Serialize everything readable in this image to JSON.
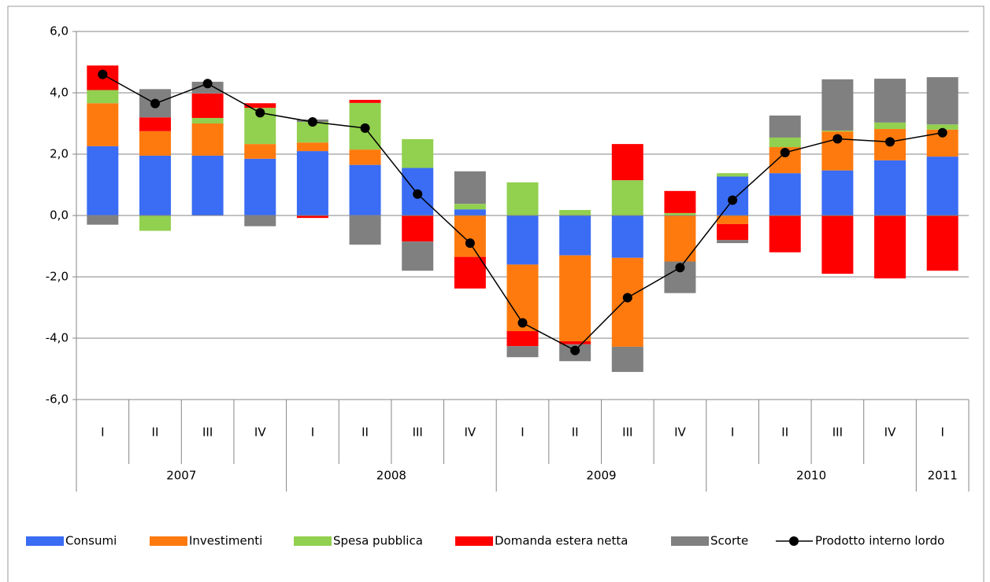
{
  "chart_data": {
    "type": "stacked-bar-line",
    "groups": [
      {
        "label": "2007",
        "categories": [
          "I",
          "II",
          "III",
          "IV"
        ]
      },
      {
        "label": "2008",
        "categories": [
          "I",
          "II",
          "III",
          "IV"
        ]
      },
      {
        "label": "2009",
        "categories": [
          "I",
          "II",
          "III",
          "IV"
        ]
      },
      {
        "label": "2010",
        "categories": [
          "I",
          "II",
          "III",
          "IV"
        ]
      },
      {
        "label": "2011",
        "categories": [
          "I"
        ]
      }
    ],
    "series": [
      {
        "name": "Consumi",
        "color": "#3a6cf4",
        "values": [
          2.26,
          1.95,
          1.95,
          1.85,
          2.1,
          1.65,
          1.55,
          0.2,
          -1.6,
          -1.3,
          -1.38,
          0,
          1.27,
          1.38,
          1.47,
          1.8,
          1.92
        ]
      },
      {
        "name": "Investimenti",
        "color": "#ff7a0e",
        "values": [
          1.4,
          0.8,
          1.05,
          0.48,
          0.28,
          0.5,
          0,
          -1.35,
          -2.17,
          -2.8,
          -2.9,
          -1.5,
          -0.28,
          0.85,
          1.27,
          1.02,
          0.88
        ]
      },
      {
        "name": "Spesa pubblica",
        "color": "#92d050",
        "values": [
          0.43,
          -0.5,
          0.18,
          1.18,
          0.67,
          1.52,
          0.94,
          0.18,
          1.08,
          0.18,
          1.15,
          0.08,
          0.11,
          0.31,
          0.03,
          0.21,
          0.17
        ]
      },
      {
        "name": "Domanda estera netta",
        "color": "#ff0000",
        "values": [
          0.8,
          0.45,
          0.8,
          0.15,
          -0.08,
          0.1,
          -0.85,
          -1.03,
          -0.49,
          -0.1,
          1.18,
          0.72,
          -0.52,
          -1.2,
          -1.9,
          -2.05,
          -1.8
        ]
      },
      {
        "name": "Scorte",
        "color": "#808080",
        "values": [
          -0.3,
          0.92,
          0.38,
          -0.35,
          0.08,
          -0.95,
          -0.95,
          1.06,
          -0.36,
          -0.55,
          -0.82,
          -1.03,
          -0.1,
          0.72,
          1.67,
          1.43,
          1.54
        ]
      }
    ],
    "line": {
      "name": "Prodotto interno lordo",
      "color": "#000000",
      "values": [
        4.6,
        3.65,
        4.3,
        3.35,
        3.05,
        2.85,
        0.7,
        -0.9,
        -3.5,
        -4.4,
        -2.68,
        -1.7,
        0.5,
        2.05,
        2.5,
        2.4,
        2.7
      ]
    },
    "ylim": [
      -6,
      6
    ],
    "yticks": [
      {
        "value": -6,
        "label": "-6,0"
      },
      {
        "value": -4,
        "label": "-4,0"
      },
      {
        "value": -2,
        "label": "-2,0"
      },
      {
        "value": 0,
        "label": "0,0"
      },
      {
        "value": 2,
        "label": "2,0"
      },
      {
        "value": 4,
        "label": "4,0"
      },
      {
        "value": 6,
        "label": "6,0"
      }
    ],
    "grid": true
  }
}
